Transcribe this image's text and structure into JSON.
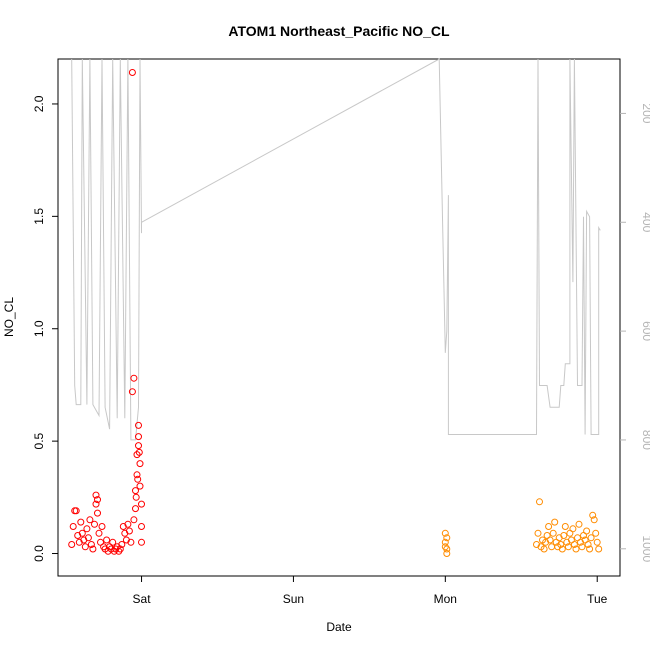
{
  "chart_data": {
    "type": "scatter",
    "title": "ATOM1 Northeast_Pacific NO_CL",
    "xlabel": "Date",
    "ylabel": "NO_CL",
    "x_axis": {
      "unit": "day",
      "ticks": [
        {
          "value": 1,
          "label": "Sat"
        },
        {
          "value": 2,
          "label": "Sun"
        },
        {
          "value": 3,
          "label": "Mon"
        },
        {
          "value": 4,
          "label": "Tue"
        }
      ],
      "range": [
        0.45,
        4.15
      ]
    },
    "y_axis_left": {
      "ticks": [
        {
          "value": 0.0,
          "label": "0.0"
        },
        {
          "value": 0.5,
          "label": "0.5"
        },
        {
          "value": 1.0,
          "label": "1.0"
        },
        {
          "value": 1.5,
          "label": "1.5"
        },
        {
          "value": 2.0,
          "label": "2.0"
        }
      ],
      "range": [
        -0.1,
        2.2
      ]
    },
    "y_axis_right": {
      "reversed": true,
      "ticks": [
        {
          "value": 200,
          "label": "200"
        },
        {
          "value": 400,
          "label": "400"
        },
        {
          "value": 600,
          "label": "600"
        },
        {
          "value": 800,
          "label": "800"
        },
        {
          "value": 1000,
          "label": "1000"
        }
      ],
      "range": [
        1050,
        100
      ]
    },
    "grid": false,
    "legend": "none",
    "colors": {
      "series_1": "#ff0000",
      "series_2": "#ff8c00",
      "pressure_line": "#c8c8c8",
      "right_axis": "#b4b4b4"
    },
    "series": [
      {
        "kind": "points",
        "color": "#ff0000",
        "points": [
          [
            0.54,
            0.04
          ],
          [
            0.55,
            0.12
          ],
          [
            0.56,
            0.19
          ],
          [
            0.57,
            0.19
          ],
          [
            0.58,
            0.08
          ],
          [
            0.59,
            0.05
          ],
          [
            0.6,
            0.14
          ],
          [
            0.61,
            0.09
          ],
          [
            0.62,
            0.06
          ],
          [
            0.63,
            0.03
          ],
          [
            0.64,
            0.11
          ],
          [
            0.65,
            0.07
          ],
          [
            0.66,
            0.15
          ],
          [
            0.67,
            0.04
          ],
          [
            0.68,
            0.02
          ],
          [
            0.69,
            0.13
          ],
          [
            0.7,
            0.26
          ],
          [
            0.7,
            0.22
          ],
          [
            0.71,
            0.24
          ],
          [
            0.71,
            0.18
          ],
          [
            0.72,
            0.09
          ],
          [
            0.73,
            0.05
          ],
          [
            0.74,
            0.12
          ],
          [
            0.75,
            0.03
          ],
          [
            0.76,
            0.02
          ],
          [
            0.77,
            0.06
          ],
          [
            0.78,
            0.01
          ],
          [
            0.79,
            0.03
          ],
          [
            0.8,
            0.02
          ],
          [
            0.81,
            0.05
          ],
          [
            0.82,
            0.01
          ],
          [
            0.83,
            0.02
          ],
          [
            0.84,
            0.03
          ],
          [
            0.85,
            0.01
          ],
          [
            0.86,
            0.02
          ],
          [
            0.87,
            0.04
          ],
          [
            0.88,
            0.12
          ],
          [
            0.89,
            0.09
          ],
          [
            0.9,
            0.06
          ],
          [
            0.91,
            0.13
          ],
          [
            0.92,
            0.1
          ],
          [
            0.93,
            0.05
          ],
          [
            0.94,
            2.14
          ],
          [
            0.94,
            0.72
          ],
          [
            0.95,
            0.78
          ],
          [
            0.95,
            0.15
          ],
          [
            0.96,
            0.2
          ],
          [
            0.96,
            0.28
          ],
          [
            0.97,
            0.35
          ],
          [
            0.97,
            0.44
          ],
          [
            0.98,
            0.52
          ],
          [
            0.98,
            0.57
          ],
          [
            0.98,
            0.48
          ],
          [
            0.99,
            0.4
          ],
          [
            0.99,
            0.3
          ],
          [
            1.0,
            0.22
          ],
          [
            1.0,
            0.12
          ],
          [
            1.0,
            0.05
          ],
          [
            0.975,
            0.33
          ],
          [
            0.965,
            0.25
          ],
          [
            0.985,
            0.45
          ]
        ]
      },
      {
        "kind": "points",
        "color": "#ff8c00",
        "points": [
          [
            3.0,
            0.09
          ],
          [
            3.0,
            0.05
          ],
          [
            3.01,
            0.02
          ],
          [
            3.01,
            0.0
          ],
          [
            3.01,
            0.07
          ],
          [
            3.0,
            0.03
          ],
          [
            3.6,
            0.04
          ],
          [
            3.61,
            0.09
          ],
          [
            3.62,
            0.23
          ],
          [
            3.63,
            0.03
          ],
          [
            3.64,
            0.06
          ],
          [
            3.65,
            0.02
          ],
          [
            3.66,
            0.05
          ],
          [
            3.67,
            0.08
          ],
          [
            3.68,
            0.12
          ],
          [
            3.69,
            0.06
          ],
          [
            3.7,
            0.03
          ],
          [
            3.71,
            0.09
          ],
          [
            3.72,
            0.14
          ],
          [
            3.73,
            0.05
          ],
          [
            3.74,
            0.03
          ],
          [
            3.75,
            0.07
          ],
          [
            3.76,
            0.04
          ],
          [
            3.77,
            0.02
          ],
          [
            3.78,
            0.08
          ],
          [
            3.79,
            0.12
          ],
          [
            3.8,
            0.05
          ],
          [
            3.81,
            0.03
          ],
          [
            3.82,
            0.09
          ],
          [
            3.83,
            0.06
          ],
          [
            3.84,
            0.11
          ],
          [
            3.85,
            0.04
          ],
          [
            3.86,
            0.02
          ],
          [
            3.87,
            0.07
          ],
          [
            3.88,
            0.13
          ],
          [
            3.89,
            0.05
          ],
          [
            3.9,
            0.03
          ],
          [
            3.91,
            0.08
          ],
          [
            3.92,
            0.06
          ],
          [
            3.93,
            0.1
          ],
          [
            3.94,
            0.04
          ],
          [
            3.95,
            0.02
          ],
          [
            3.96,
            0.07
          ],
          [
            3.97,
            0.17
          ],
          [
            3.98,
            0.15
          ],
          [
            3.99,
            0.09
          ],
          [
            4.0,
            0.05
          ],
          [
            4.01,
            0.02
          ]
        ]
      },
      {
        "kind": "line",
        "axis": "right",
        "color": "#c8c8c8",
        "points": [
          [
            0.54,
            100
          ],
          [
            0.56,
            700
          ],
          [
            0.57,
            735
          ],
          [
            0.6,
            735
          ],
          [
            0.61,
            100
          ],
          [
            0.64,
            735
          ],
          [
            0.66,
            100
          ],
          [
            0.68,
            735
          ],
          [
            0.72,
            755
          ],
          [
            0.74,
            100
          ],
          [
            0.76,
            740
          ],
          [
            0.79,
            780
          ],
          [
            0.81,
            100
          ],
          [
            0.84,
            760
          ],
          [
            0.86,
            100
          ],
          [
            0.89,
            760
          ],
          [
            0.91,
            100
          ],
          [
            0.93,
            800
          ],
          [
            0.96,
            800
          ],
          [
            0.98,
            740
          ],
          [
            0.99,
            100
          ],
          [
            1.0,
            420
          ],
          [
            1.0,
            400
          ],
          [
            2.96,
            100
          ],
          [
            3.0,
            640
          ],
          [
            3.01,
            600
          ],
          [
            3.02,
            350
          ],
          [
            3.02,
            790
          ],
          [
            3.6,
            790
          ],
          [
            3.61,
            100
          ],
          [
            3.62,
            700
          ],
          [
            3.67,
            700
          ],
          [
            3.69,
            740
          ],
          [
            3.75,
            740
          ],
          [
            3.76,
            700
          ],
          [
            3.78,
            700
          ],
          [
            3.79,
            660
          ],
          [
            3.82,
            660
          ],
          [
            3.82,
            100
          ],
          [
            3.84,
            510
          ],
          [
            3.85,
            100
          ],
          [
            3.87,
            700
          ],
          [
            3.9,
            700
          ],
          [
            3.91,
            390
          ],
          [
            3.92,
            790
          ],
          [
            3.93,
            380
          ],
          [
            3.95,
            390
          ],
          [
            3.96,
            790
          ],
          [
            4.01,
            790
          ],
          [
            4.01,
            410
          ],
          [
            4.02,
            415
          ]
        ]
      }
    ]
  }
}
